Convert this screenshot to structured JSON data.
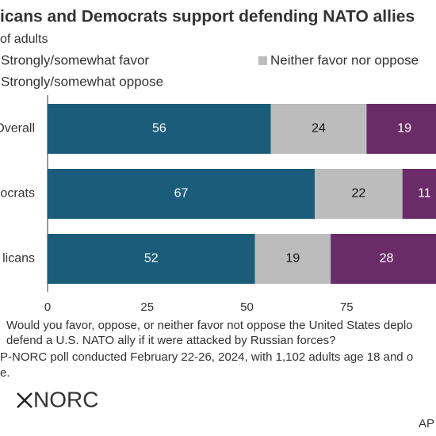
{
  "chart_data": {
    "type": "stacked-bar",
    "title": "icans and Democrats support defending NATO allies",
    "subtitle": "of adults",
    "categories": [
      "Overall",
      "ocrats",
      "licans"
    ],
    "series": [
      {
        "name": "Strongly/somewhat favor",
        "color": "#1b5c7b",
        "label_color": "#ffffff",
        "values": [
          56,
          67,
          52
        ]
      },
      {
        "name": "Neither favor nor oppose",
        "color": "#bcbcbc",
        "label_color": "#111111",
        "values": [
          24,
          22,
          19
        ]
      },
      {
        "name": "Strongly/somewhat oppose",
        "color": "#6a2c68",
        "label_color": "#ffffff",
        "values": [
          19,
          11,
          28
        ]
      }
    ],
    "xlim": [
      0,
      100
    ],
    "xticks": [
      0,
      25,
      50,
      75
    ],
    "notes": [
      "Would you favor, oppose, or neither favor not oppose the United States deplo",
      "defend a U.S. NATO ally if it were attacked by Russian forces?",
      "P-NORC poll conducted February 22-26, 2024, with 1,102 adults age 18 and o",
      "e."
    ],
    "logo": "NORC",
    "credit": "AP"
  }
}
